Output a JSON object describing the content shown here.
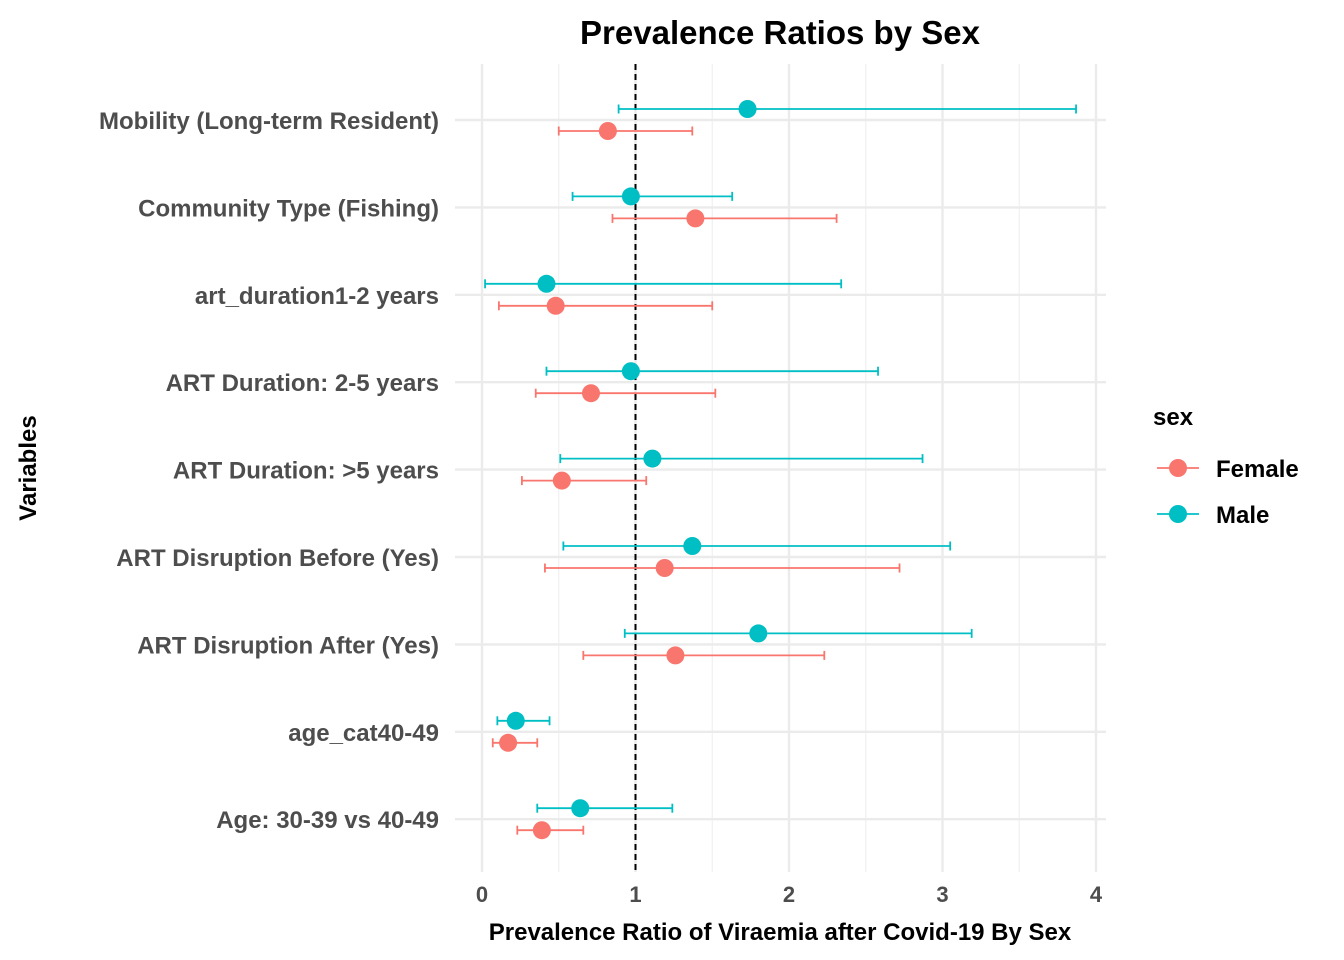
{
  "chart_data": {
    "type": "scatter",
    "subtype": "forest-plot",
    "title": "Prevalence Ratios by Sex",
    "xlabel": "Prevalence Ratio of Viraemia after Covid-19 By Sex",
    "ylabel": "Variables",
    "xlim": [
      0,
      4
    ],
    "x_ticks": [
      0,
      1,
      2,
      3,
      4
    ],
    "reference_line": 1,
    "grid": true,
    "legend_title": "sex",
    "legend_position": "right",
    "categories": [
      "Mobility (Long-term Resident)",
      "Community Type (Fishing)",
      "art_duration1-2 years",
      "ART Duration: 2-5 years",
      "ART Duration: >5 years",
      "ART Disruption Before (Yes)",
      "ART Disruption After (Yes)",
      "age_cat40-49",
      "Age: 30-39 vs 40-49"
    ],
    "series": [
      {
        "name": "Female",
        "color": "#F8766D",
        "estimate": [
          0.82,
          1.39,
          0.48,
          0.71,
          0.52,
          1.19,
          1.26,
          0.17,
          0.39
        ],
        "lower": [
          0.5,
          0.85,
          0.11,
          0.35,
          0.26,
          0.41,
          0.66,
          0.07,
          0.23
        ],
        "upper": [
          1.37,
          2.31,
          1.5,
          1.52,
          1.07,
          2.72,
          2.23,
          0.36,
          0.66
        ]
      },
      {
        "name": "Male",
        "color": "#00BFC4",
        "estimate": [
          1.73,
          0.97,
          0.42,
          0.97,
          1.11,
          1.37,
          1.8,
          0.22,
          0.64
        ],
        "lower": [
          0.89,
          0.59,
          0.02,
          0.42,
          0.51,
          0.53,
          0.93,
          0.1,
          0.36
        ],
        "upper": [
          3.87,
          1.63,
          2.34,
          2.58,
          2.87,
          3.05,
          3.19,
          0.44,
          1.24
        ]
      }
    ]
  }
}
